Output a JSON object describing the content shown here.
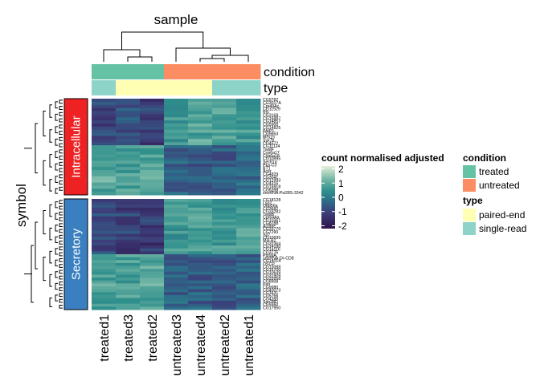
{
  "chart_data": {
    "type": "heatmap",
    "title": "sample",
    "ylabel": "symbol",
    "samples": [
      "treated1",
      "treated3",
      "treated2",
      "untreated3",
      "untreated4",
      "untreated2",
      "untreated1"
    ],
    "annotations": [
      {
        "label": "condition",
        "values": [
          "treated",
          "treated",
          "treated",
          "untreated",
          "untreated",
          "untreated",
          "untreated"
        ]
      },
      {
        "label": "type",
        "values": [
          "single-read",
          "paired-end",
          "paired-end",
          "paired-end",
          "paired-end",
          "single-read",
          "single-read"
        ]
      }
    ],
    "groups": [
      {
        "label": "Intracellular",
        "color": "#ee2222"
      },
      {
        "label": "Secretory",
        "color": "#3a7fbf"
      }
    ],
    "row_labels_intracellular": [
      "CG9782",
      "CG3017A",
      "Cpr49Ac",
      "CG11929",
      "Rfx",
      "CG3168",
      "CG16887",
      "CG14857",
      "CG5900",
      "CG14825",
      "PAIP1",
      "CG9653",
      "MfS15",
      "Syx7b",
      "CG4572",
      "CG11124",
      "TwdlF",
      "Cyp6a17",
      "Cyp6a18",
      "CG10995",
      "Sec61α",
      "Pka-C3",
      "BT1",
      "Acer",
      "CG4829",
      "CG3041",
      "CG12993",
      "CG4316",
      "CG15918",
      "CG6398",
      "snoRNA:Psi28S-3342"
    ],
    "row_labels_secretory": [
      "CG18128",
      "Lsp2",
      "Obp56a",
      "CG3682",
      "CG33282",
      "TwdlB",
      "Cpr64Aa",
      "CG10361",
      "CG8788",
      "Act88F",
      "CG33770",
      "CG7290",
      "Sp7",
      "CG10695",
      "Mal-B2",
      "CG32364",
      "CG14180",
      "CG14116",
      "CG3776",
      "Ptp99A",
      "snoRNA:Or-CD8",
      "CG14014",
      "OSCP",
      "CG13088",
      "CG16700",
      "CG10639",
      "CG31909",
      "CG33958",
      "CG8908",
      "Pen",
      "CG9980",
      "CG40073",
      "CG1631",
      "CG5766",
      "CG4390",
      "Spn28D",
      "CG9360",
      "CG17950"
    ],
    "legend": {
      "title": "count normalised adjusted",
      "ticks": [
        2,
        1,
        0,
        -1,
        -2
      ],
      "range": [
        -2.2,
        2.2
      ],
      "colors": [
        "#2d1148",
        "#3d3d7a",
        "#2d6e8a",
        "#2f8f8c",
        "#6fb4a4",
        "#e6efd8"
      ]
    },
    "condition_legend": {
      "title": "condition",
      "items": [
        {
          "label": "treated",
          "color": "#66c2a5"
        },
        {
          "label": "untreated",
          "color": "#fc8d62"
        }
      ]
    },
    "type_legend": {
      "title": "type",
      "items": [
        {
          "label": "paired-end",
          "color": "#ffffb3"
        },
        {
          "label": "single-read",
          "color": "#8dd3c7"
        }
      ]
    },
    "pattern": {
      "intracellular": {
        "upper": {
          "treated": [
            -1.1,
            -1.0,
            -1.3
          ],
          "untreated": [
            0.6,
            0.9,
            0.8,
            0.7
          ]
        },
        "lower": {
          "treated": [
            1.0,
            0.8,
            0.9
          ],
          "untreated": [
            -0.6,
            -0.8,
            -0.7,
            -0.5
          ]
        }
      },
      "secretory": {
        "upper": {
          "treated": [
            -1.1,
            -1.2,
            -1.3
          ],
          "untreated": [
            0.6,
            0.8,
            0.7,
            0.8
          ]
        },
        "lower": {
          "treated": [
            0.9,
            0.8,
            1.0
          ],
          "untreated": [
            -0.6,
            -0.7,
            -0.8,
            -0.6
          ]
        }
      }
    }
  }
}
